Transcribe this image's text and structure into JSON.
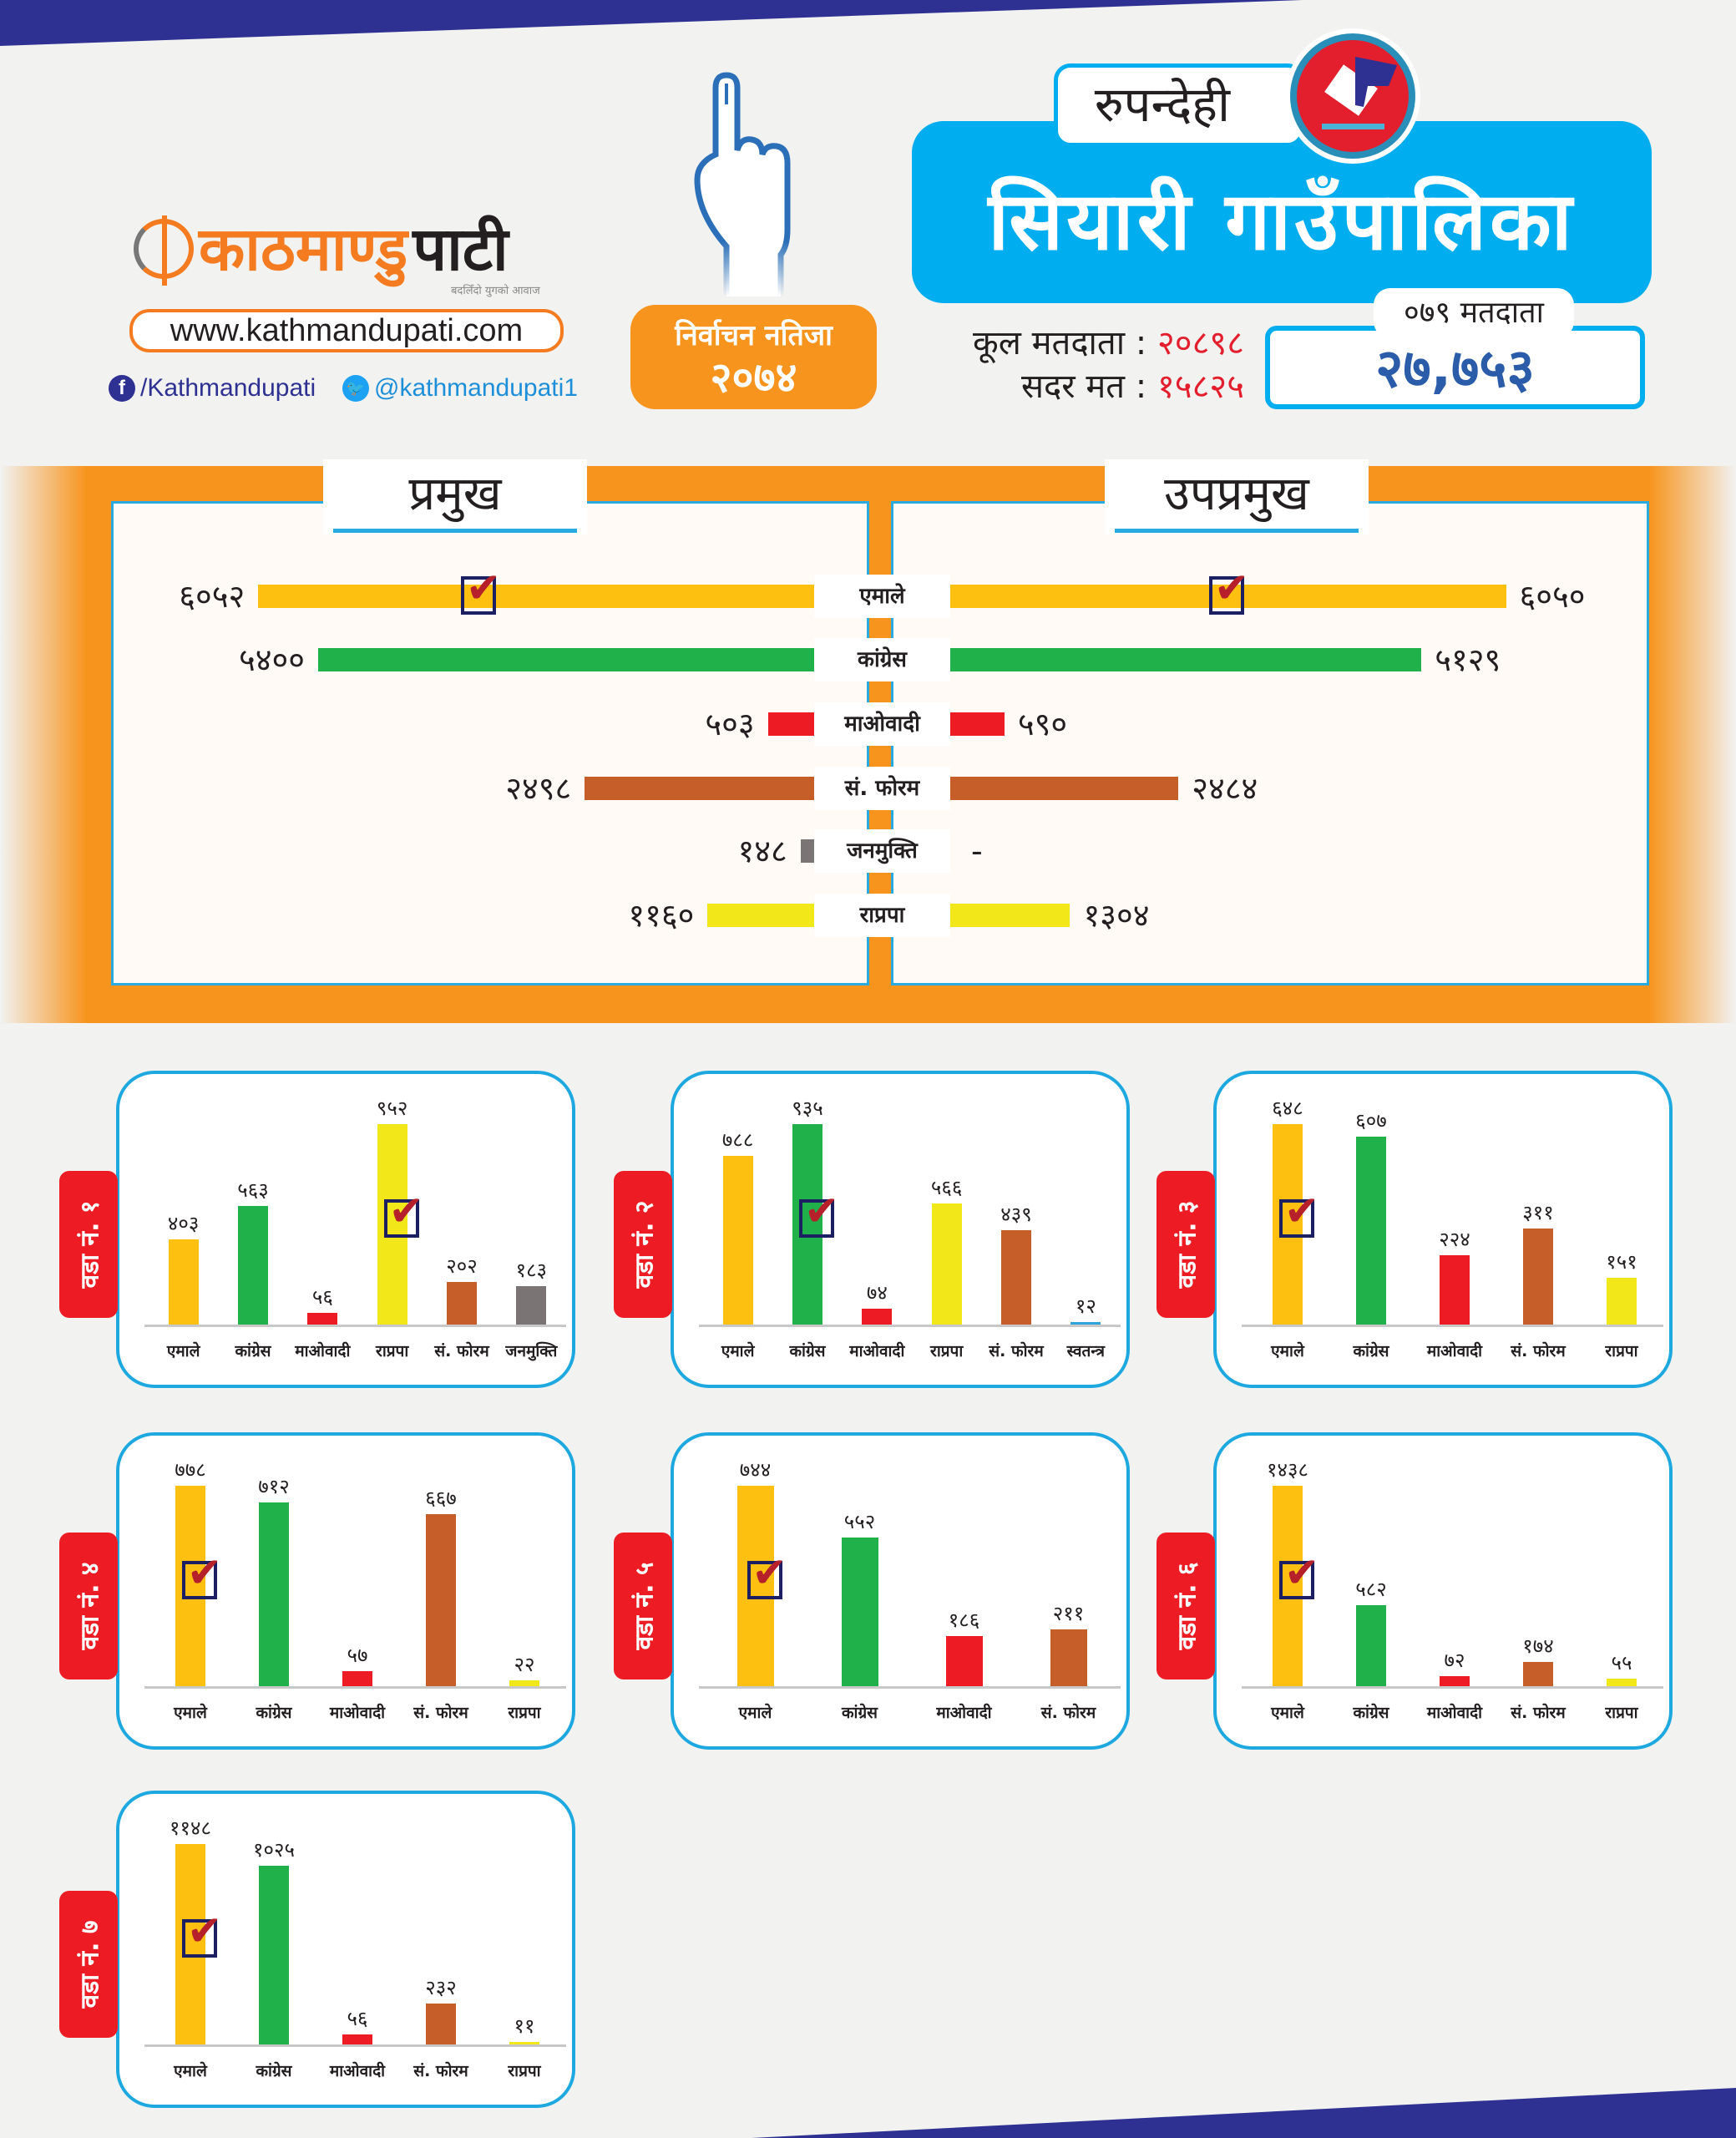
{
  "header": {
    "logo_text_orange": "काठमाण्डु",
    "logo_text_dark": "पाटी",
    "logo_tagline": "बदलिँदो युगको आवाज",
    "website": "www.kathmandupati.com",
    "facebook": "/Kathmandupati",
    "twitter": "@kathmandupati1",
    "badge_line1": "निर्वाचन नतिजा",
    "badge_line2": "२०७४",
    "district": "रुपन्देही",
    "municipality": "सियारी गाउँपालिका",
    "total_voters_label": "कूल मतदाता :",
    "total_voters": "२०८९८",
    "valid_votes_label": "सदर मत :",
    "valid_votes": "१५८२५",
    "voters_079_label": "०७९ मतदाता",
    "voters_079": "२७,७५३"
  },
  "party_colors": {
    "एमाले": "#fdc010",
    "कांग्रेस": "#21b14b",
    "माओवादी": "#ed1c24",
    "सं. फोरम": "#c55e28",
    "जनमुक्ति": "#7b7474",
    "राप्रपा": "#f2e819",
    "स्वतन्त्र": "#2ea3dc"
  },
  "chart_data": [
    {
      "type": "bar",
      "orientation": "horizontal",
      "title": "प्रमुख / उपप्रमुख",
      "categories": [
        "एमाले",
        "कांग्रेस",
        "माओवादी",
        "सं. फोरम",
        "जनमुक्ति",
        "राप्रपा"
      ],
      "series": [
        {
          "name": "प्रमुख",
          "values": [
            6052,
            5400,
            503,
            2498,
            148,
            1160
          ],
          "labels": [
            "६०५२",
            "५४००",
            "५०३",
            "२४९८",
            "१४८",
            "११६०"
          ],
          "winner": 0
        },
        {
          "name": "उपप्रमुख",
          "values": [
            6050,
            5129,
            590,
            2484,
            null,
            1304
          ],
          "labels": [
            "६०५०",
            "५१२९",
            "५९०",
            "२४८४",
            "-",
            "१३०४"
          ],
          "winner": 0
        }
      ]
    },
    {
      "type": "bar",
      "title": "वडा नं. १",
      "categories": [
        "एमाले",
        "कांग्रेस",
        "माओवादी",
        "राप्रपा",
        "सं. फोरम",
        "जनमुक्ति"
      ],
      "values": [
        403,
        563,
        56,
        952,
        202,
        183
      ],
      "labels": [
        "४०३",
        "५६३",
        "५६",
        "९५२",
        "२०२",
        "१८३"
      ],
      "winner": 3
    },
    {
      "type": "bar",
      "title": "वडा नं. २",
      "categories": [
        "एमाले",
        "कांग्रेस",
        "माओवादी",
        "राप्रपा",
        "सं. फोरम",
        "स्वतन्त्र"
      ],
      "values": [
        788,
        935,
        74,
        566,
        439,
        12
      ],
      "labels": [
        "७८८",
        "९३५",
        "७४",
        "५६६",
        "४३९",
        "१२"
      ],
      "winner": 1
    },
    {
      "type": "bar",
      "title": "वडा नं. ३",
      "categories": [
        "एमाले",
        "कांग्रेस",
        "माओवादी",
        "सं. फोरम",
        "राप्रपा"
      ],
      "values": [
        648,
        607,
        224,
        311,
        151
      ],
      "labels": [
        "६४८",
        "६०७",
        "२२४",
        "३११",
        "१५१"
      ],
      "winner": 0
    },
    {
      "type": "bar",
      "title": "वडा नं. ४",
      "categories": [
        "एमाले",
        "कांग्रेस",
        "माओवादी",
        "सं. फोरम",
        "राप्रपा"
      ],
      "values": [
        778,
        712,
        57,
        667,
        22
      ],
      "labels": [
        "७७८",
        "७१२",
        "५७",
        "६६७",
        "२२"
      ],
      "winner": 0
    },
    {
      "type": "bar",
      "title": "वडा नं. ५",
      "categories": [
        "एमाले",
        "कांग्रेस",
        "माओवादी",
        "सं. फोरम"
      ],
      "values": [
        744,
        552,
        186,
        211
      ],
      "labels": [
        "७४४",
        "५५२",
        "१८६",
        "२११"
      ],
      "winner": 0
    },
    {
      "type": "bar",
      "title": "वडा नं. ६",
      "categories": [
        "एमाले",
        "कांग्रेस",
        "माओवादी",
        "सं. फोरम",
        "राप्रपा"
      ],
      "values": [
        1438,
        582,
        72,
        174,
        55
      ],
      "labels": [
        "१४३८",
        "५८२",
        "७२",
        "१७४",
        "५५"
      ],
      "winner": 0
    },
    {
      "type": "bar",
      "title": "वडा नं. ७",
      "categories": [
        "एमाले",
        "कांग्रेस",
        "माओवादी",
        "सं. फोरम",
        "राप्रपा"
      ],
      "values": [
        1148,
        1025,
        56,
        232,
        11
      ],
      "labels": [
        "११४८",
        "१०२५",
        "५६",
        "२३२",
        "११"
      ],
      "winner": 0
    }
  ]
}
